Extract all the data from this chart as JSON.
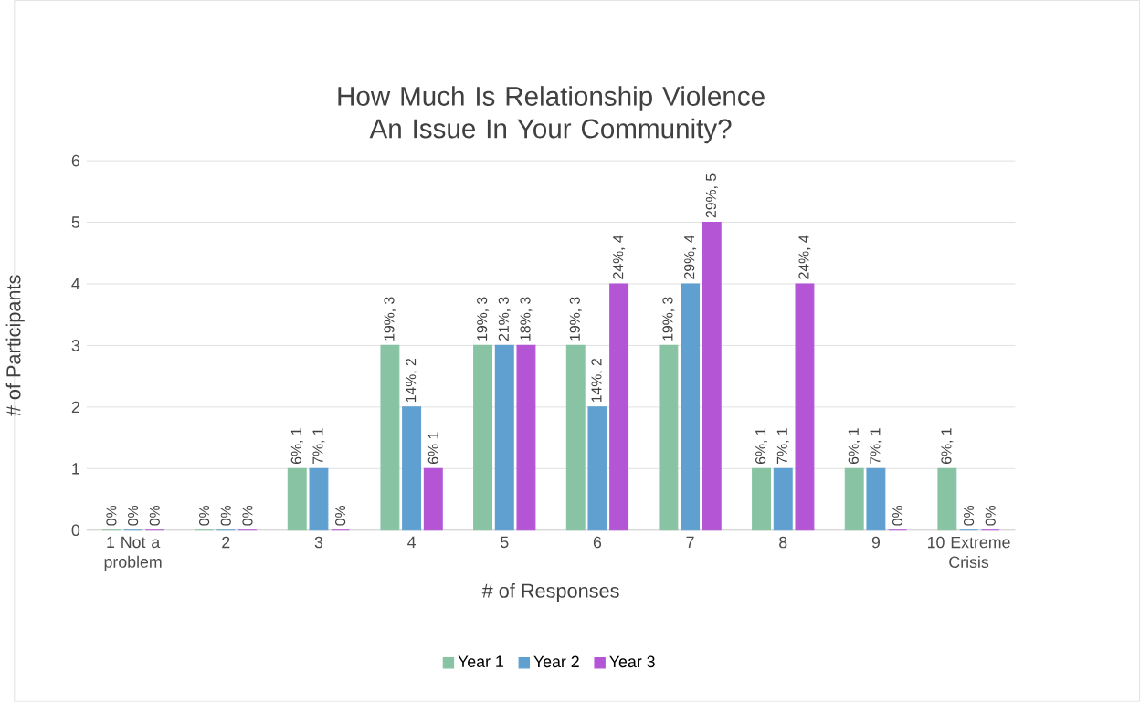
{
  "chart_data": {
    "type": "bar",
    "title": "How Much Is Relationship Violence An Issue In Your Community?",
    "xlabel": "# of Responses",
    "ylabel": "# of Participants",
    "categories": [
      "1 Not a problem",
      "2",
      "3",
      "4",
      "5",
      "6",
      "7",
      "8",
      "9",
      "10 Extreme Crisis"
    ],
    "series": [
      {
        "name": "Year 1",
        "color": "#88c4a3",
        "values": [
          0,
          0,
          1,
          3,
          3,
          3,
          3,
          1,
          1,
          1
        ],
        "value_labels": [
          "0%",
          "0%",
          "6%, 1",
          "19%, 3",
          "19%, 3",
          "19%, 3",
          "19%, 3",
          "6%, 1",
          "6%, 1",
          "6%, 1"
        ]
      },
      {
        "name": "Year 2",
        "color": "#5fa0d0",
        "values": [
          0,
          0,
          1,
          2,
          3,
          2,
          4,
          1,
          1,
          0
        ],
        "value_labels": [
          "0%",
          "0%",
          "7%, 1",
          "14%, 2",
          "21%, 3",
          "14%, 2",
          "29%, 4",
          "7%, 1",
          "7%, 1",
          "0%"
        ]
      },
      {
        "name": "Year 3",
        "color": "#b455d6",
        "values": [
          0,
          0,
          0,
          1,
          3,
          4,
          5,
          4,
          0,
          0
        ],
        "value_labels": [
          "0%",
          "0%",
          "0%",
          "6% 1",
          "18%, 3",
          "24%, 4",
          "29%, 5",
          "24%, 4",
          "0%",
          "0%"
        ]
      }
    ],
    "ylim": [
      0,
      6
    ],
    "yticks": [
      0,
      1,
      2,
      3,
      4,
      5,
      6
    ],
    "grid": "y",
    "legend": "bottom"
  }
}
